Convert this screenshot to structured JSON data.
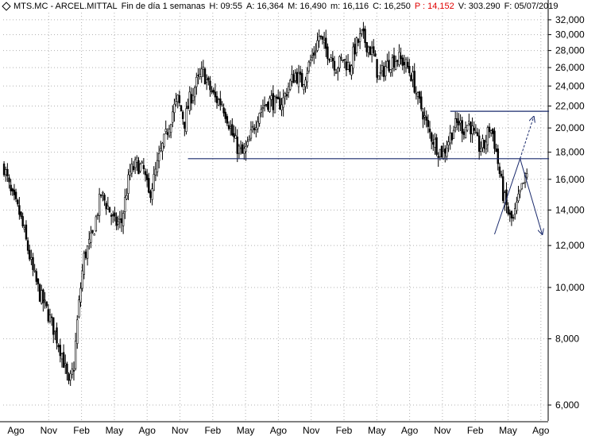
{
  "header": {
    "ticker": "MTS.MC - ARCEL.MITTAL",
    "period": "Fin de día 1 semanas",
    "hour": "H: 09:55",
    "open": "A: 16,364",
    "high": "M: 16,490",
    "low": "m: 16,116",
    "close": "C: 16,250",
    "prev": "P : 14,152",
    "volume": "V: 303.290",
    "date": "F: 05/07/2019"
  },
  "chart_data": {
    "type": "candlestick",
    "scale": "log",
    "ylim": [
      5.6,
      33
    ],
    "y_ticks": [
      6,
      8,
      10,
      12,
      14,
      16,
      18,
      20,
      22,
      24,
      26,
      28,
      30,
      32
    ],
    "y_tick_labels": [
      "6,000",
      "8,000",
      "10,000",
      "12,000",
      "14,000",
      "16,000",
      "18,000",
      "20,000",
      "22,000",
      "24,000",
      "26,000",
      "28,000",
      "30,000",
      "32,000"
    ],
    "x_tick_labels": [
      "Ago",
      "Nov",
      "Feb",
      "May",
      "Ago",
      "Nov",
      "Feb",
      "May",
      "Ago",
      "Nov",
      "Feb",
      "May",
      "Ago",
      "Nov",
      "Feb",
      "May",
      "Ago"
    ],
    "grid": true,
    "colors": {
      "up": "#ffffff",
      "down": "#000000",
      "lines": "#1a2a6c",
      "grid": "#b0b0b0"
    },
    "close_path": [
      [
        0,
        16.9
      ],
      [
        4,
        15.0
      ],
      [
        9,
        13.8
      ],
      [
        13,
        12.2
      ],
      [
        17,
        10.7
      ],
      [
        21,
        9.7
      ],
      [
        26,
        8.9
      ],
      [
        30,
        8.2
      ],
      [
        34,
        7.5
      ],
      [
        38,
        6.5
      ],
      [
        41,
        7.1
      ],
      [
        43,
        8.6
      ],
      [
        47,
        11.4
      ],
      [
        52,
        12.5
      ],
      [
        57,
        15.0
      ],
      [
        61,
        14.2
      ],
      [
        65,
        13.2
      ],
      [
        69,
        13.3
      ],
      [
        74,
        16.5
      ],
      [
        78,
        17.1
      ],
      [
        82,
        16.6
      ],
      [
        85,
        14.9
      ],
      [
        88,
        16.0
      ],
      [
        92,
        18.0
      ],
      [
        95,
        19.3
      ],
      [
        99,
        21.5
      ],
      [
        102,
        22.6
      ],
      [
        106,
        20.5
      ],
      [
        109,
        22.6
      ],
      [
        113,
        24.3
      ],
      [
        117,
        25.5
      ],
      [
        120,
        24.0
      ],
      [
        124,
        22.7
      ],
      [
        128,
        22.3
      ],
      [
        131,
        21.0
      ],
      [
        134,
        19.4
      ],
      [
        137,
        18.4
      ],
      [
        140,
        17.8
      ],
      [
        143,
        18.4
      ],
      [
        146,
        19.8
      ],
      [
        150,
        21.6
      ],
      [
        154,
        22.3
      ],
      [
        157,
        22.6
      ],
      [
        160,
        22.0
      ],
      [
        164,
        22.6
      ],
      [
        167,
        24.0
      ],
      [
        171,
        25.3
      ],
      [
        175,
        24.3
      ],
      [
        179,
        26.3
      ],
      [
        182,
        27.7
      ],
      [
        185,
        29.8
      ],
      [
        188,
        28.4
      ],
      [
        192,
        27.4
      ],
      [
        195,
        26.1
      ],
      [
        199,
        27.0
      ],
      [
        203,
        26.0
      ],
      [
        206,
        28.3
      ],
      [
        210,
        29.9
      ],
      [
        213,
        28.8
      ],
      [
        217,
        27.4
      ],
      [
        220,
        24.8
      ],
      [
        224,
        26.1
      ],
      [
        227,
        26.7
      ],
      [
        231,
        27.1
      ],
      [
        234,
        26.7
      ],
      [
        237,
        26.0
      ],
      [
        240,
        24.8
      ],
      [
        243,
        22.6
      ],
      [
        246,
        21.4
      ],
      [
        249,
        19.8
      ],
      [
        252,
        19.0
      ],
      [
        255,
        18.2
      ],
      [
        258,
        17.9
      ],
      [
        261,
        19.0
      ],
      [
        264,
        20.0
      ],
      [
        267,
        20.5
      ],
      [
        270,
        19.9
      ],
      [
        273,
        20.5
      ],
      [
        276,
        19.3
      ],
      [
        279,
        18.4
      ],
      [
        282,
        18.5
      ],
      [
        285,
        20.0
      ],
      [
        287,
        19.5
      ],
      [
        289,
        18.0
      ],
      [
        291,
        16.4
      ],
      [
        293,
        15.0
      ],
      [
        295,
        14.2
      ],
      [
        297,
        13.5
      ],
      [
        299,
        13.4
      ],
      [
        301,
        14.2
      ],
      [
        303,
        15.0
      ],
      [
        305,
        15.7
      ],
      [
        307,
        16.25
      ]
    ],
    "annotations": {
      "support_line": {
        "y": 17.5,
        "x_start": 108,
        "x_end": 320
      },
      "resistance_line": {
        "y": 21.5,
        "x_start": 262,
        "x_end": 320
      },
      "arrows": [
        {
          "from": [
            288,
            12.6
          ],
          "to": [
            303,
            17.5
          ]
        },
        {
          "from": [
            303,
            17.5
          ],
          "to": [
            311,
            21.0
          ]
        },
        {
          "from": [
            303,
            17.5
          ],
          "to": [
            316,
            12.6
          ]
        }
      ]
    }
  }
}
